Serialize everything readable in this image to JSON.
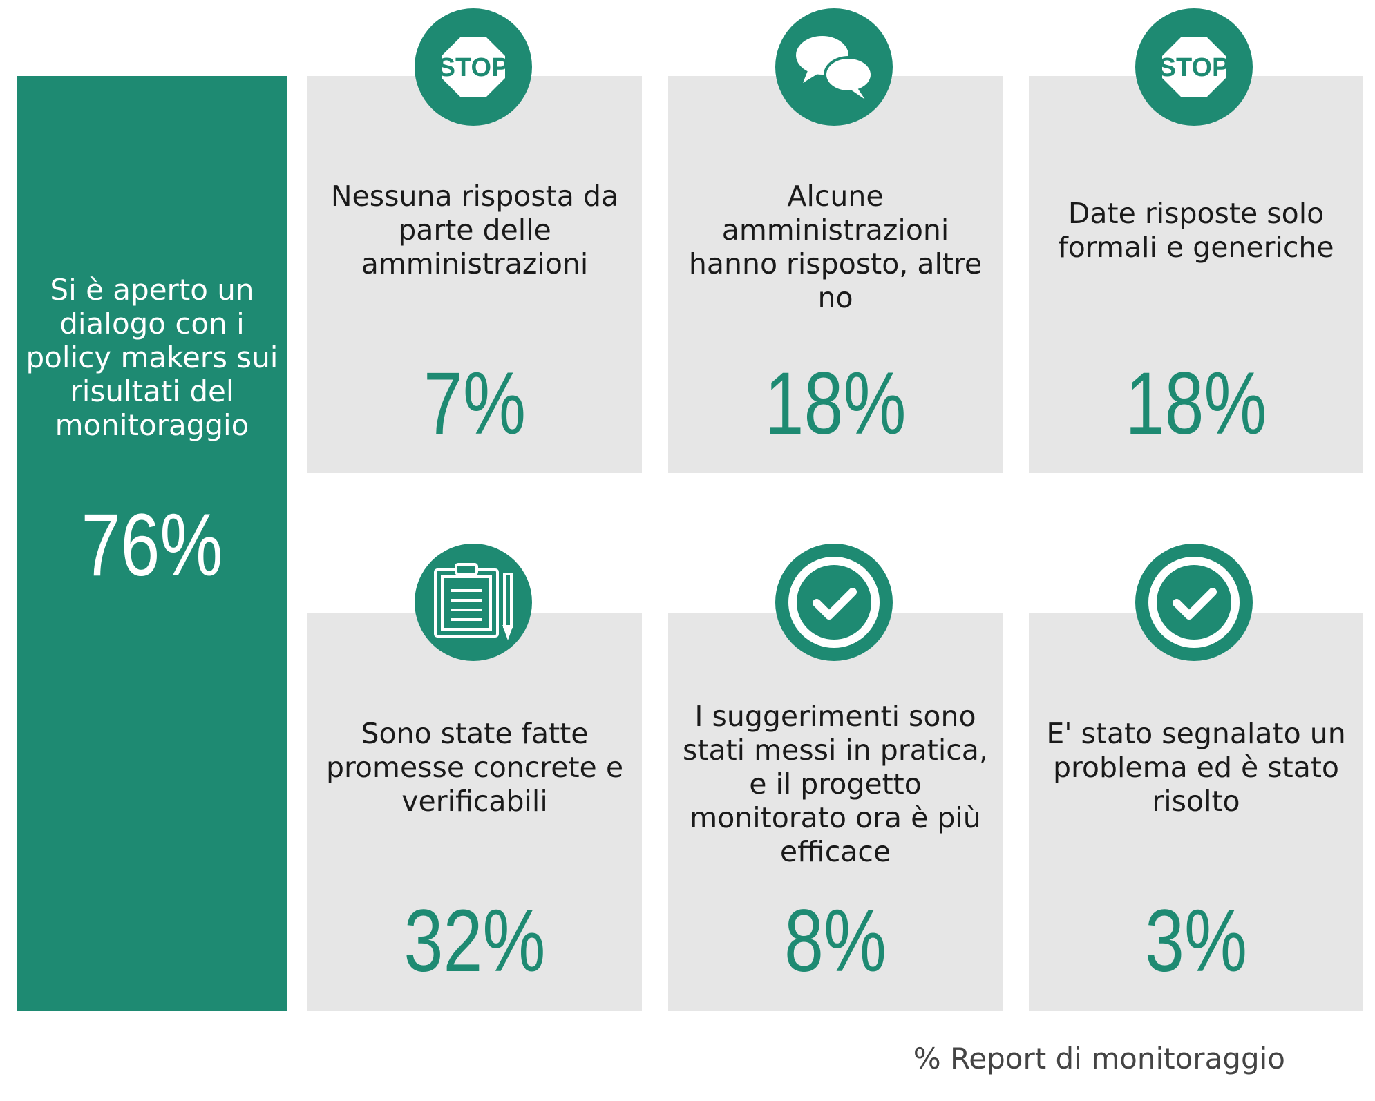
{
  "main": {
    "text": "Si è aperto un dialogo con i policy makers sui risultati del monitoraggio",
    "percent": "76%"
  },
  "cards": [
    {
      "icon": "stop-sign-icon",
      "text": "Nessuna risposta da parte delle amministrazioni",
      "percent": "7%",
      "icon_text": "STOP"
    },
    {
      "icon": "speech-bubbles-icon",
      "text": "Alcune amministrazioni hanno risposto, altre no",
      "percent": "18%"
    },
    {
      "icon": "stop-sign-icon",
      "text": "Date risposte solo formali e generiche",
      "percent": "18%",
      "icon_text": "STOP"
    },
    {
      "icon": "clipboard-icon",
      "text": "Sono state fatte promesse concrete e verificabili",
      "percent": "32%"
    },
    {
      "icon": "check-circle-icon",
      "text": "I suggerimenti sono stati messi in pratica, e il progetto monitorato ora è più efficace",
      "percent": "8%"
    },
    {
      "icon": "check-circle-icon",
      "text": "E' stato segnalato un problema ed è stato risolto",
      "percent": "3%"
    }
  ],
  "source": "% Report di monitoraggio",
  "colors": {
    "accent": "#1e8a72",
    "card_bg": "#e6e6e6",
    "text": "#1a1a1a"
  }
}
